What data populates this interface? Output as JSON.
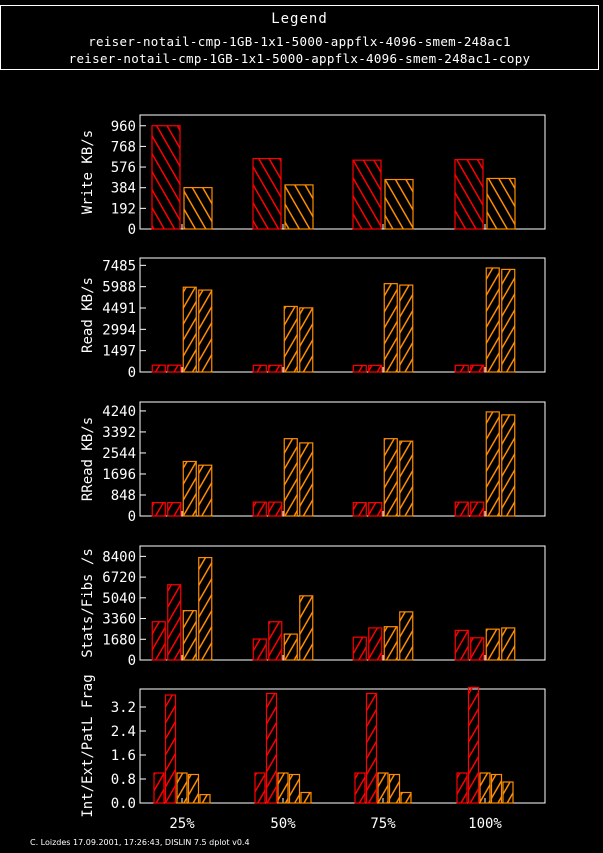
{
  "legend": {
    "title": "Legend",
    "entries": [
      "reiser-notail-cmp-1GB-1x1-5000-appflx-4096-smem-248ac1",
      "reiser-notail-cmp-1GB-1x1-5000-appflx-4096-smem-248ac1-copy"
    ]
  },
  "colors": {
    "series_a": "#ff0000",
    "series_b": "#ff8c00",
    "axes": "#ffffff",
    "background": "#000000"
  },
  "footer": "C. Loizdes 17.09.2001, 17:26:43, DISLIN 7.5 dplot v0.4",
  "chart_data": {
    "type": "bar",
    "categories": [
      "25%",
      "50%",
      "75%",
      "100%"
    ],
    "panels": [
      {
        "ylabel": "Write KB/s",
        "ylim": [
          0,
          1060
        ],
        "yticks": [
          "0",
          "192",
          "384",
          "576",
          "768",
          "960"
        ],
        "yticks_values": [
          0,
          192,
          384,
          576,
          768,
          960
        ],
        "bars": [
          [
            960,
            385
          ],
          [
            655,
            410
          ],
          [
            640,
            460
          ],
          [
            645,
            470
          ]
        ],
        "bar_colors": [
          "series_a",
          "series_b"
        ]
      },
      {
        "ylabel": "Read KB/s",
        "ylim": [
          0,
          8000
        ],
        "yticks": [
          "0",
          "1497",
          "2994",
          "4491",
          "5988",
          "7485"
        ],
        "yticks_values": [
          0,
          1497,
          2994,
          4491,
          5988,
          7485
        ],
        "bars": [
          [
            480,
            480,
            5950,
            5750
          ],
          [
            470,
            470,
            4600,
            4500
          ],
          [
            460,
            460,
            6200,
            6100
          ],
          [
            470,
            470,
            7300,
            7200
          ]
        ],
        "bar_colors": [
          "series_a",
          "series_a",
          "series_b",
          "series_b"
        ]
      },
      {
        "ylabel": "RRead KB/s",
        "ylim": [
          0,
          4600
        ],
        "yticks": [
          "0",
          "848",
          "1696",
          "2544",
          "3392",
          "4240"
        ],
        "yticks_values": [
          0,
          848,
          1696,
          2544,
          3392,
          4240
        ],
        "bars": [
          [
            540,
            540,
            2200,
            2050
          ],
          [
            560,
            560,
            3120,
            2950
          ],
          [
            540,
            540,
            3120,
            3020
          ],
          [
            560,
            560,
            4200,
            4080
          ]
        ],
        "bar_colors": [
          "series_a",
          "series_a",
          "series_b",
          "series_b"
        ]
      },
      {
        "ylabel": "Stats/Fibs /s",
        "ylim": [
          0,
          9240
        ],
        "yticks": [
          "0",
          "1680",
          "3360",
          "5040",
          "6720",
          "8400"
        ],
        "yticks_values": [
          0,
          1680,
          3360,
          5040,
          6720,
          8400
        ],
        "bars": [
          [
            3100,
            6100,
            4000,
            8300
          ],
          [
            1700,
            3100,
            2100,
            5200
          ],
          [
            1850,
            2600,
            2700,
            3900
          ],
          [
            2400,
            1800,
            2500,
            2600
          ]
        ],
        "bar_colors": [
          "series_a",
          "series_a",
          "series_b",
          "series_b"
        ]
      },
      {
        "ylabel": "Int/Ext/PatL Frag",
        "ylim": [
          0,
          3.8
        ],
        "yticks": [
          "0.0",
          "0.8",
          "1.6",
          "2.4",
          "3.2"
        ],
        "yticks_values": [
          0.0,
          0.8,
          1.6,
          2.4,
          3.2
        ],
        "bars": [
          [
            1.0,
            3.6,
            1.0,
            0.95,
            0.28
          ],
          [
            1.0,
            3.65,
            1.0,
            0.95,
            0.35
          ],
          [
            1.0,
            3.65,
            1.0,
            0.95,
            0.35
          ],
          [
            1.0,
            3.85,
            1.0,
            0.95,
            0.7
          ]
        ],
        "bar_colors": [
          "series_a",
          "series_a",
          "series_b",
          "series_b",
          "series_b"
        ]
      }
    ]
  }
}
